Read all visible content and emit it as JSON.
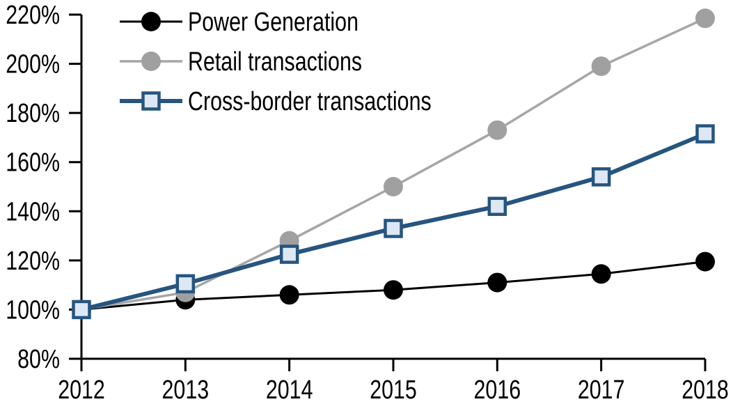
{
  "chart_data": {
    "type": "line",
    "title": "",
    "xlabel": "",
    "ylabel": "",
    "x": [
      "2012",
      "2013",
      "2014",
      "2015",
      "2016",
      "2017",
      "2018"
    ],
    "ylim": [
      80,
      220
    ],
    "ytick_step": 20,
    "ytick_labels": [
      "80%",
      "100%",
      "120%",
      "140%",
      "160%",
      "180%",
      "200%",
      "220%"
    ],
    "grid": false,
    "legend_position": "top-left-inside",
    "axis_color": "#000000",
    "background_color": "#FFFFFF",
    "series": [
      {
        "name": "Power Generation",
        "marker": "circle",
        "color": "#000000",
        "marker_fill": "#000000",
        "line_width": 3,
        "values": [
          100,
          104,
          106,
          108,
          111,
          114.5,
          119.5
        ]
      },
      {
        "name": "Retail transactions",
        "marker": "circle",
        "color": "#A6A6A6",
        "marker_fill": "#A0A0A0",
        "line_width": 3.5,
        "values": [
          100,
          107,
          128,
          150,
          173,
          199,
          218.5
        ]
      },
      {
        "name": "Cross-border transactions",
        "marker": "square",
        "color": "#26557F",
        "marker_fill": "#DDE8F4",
        "line_width": 6,
        "values": [
          100,
          110.5,
          122.5,
          133,
          142,
          154,
          171.5
        ]
      }
    ]
  }
}
